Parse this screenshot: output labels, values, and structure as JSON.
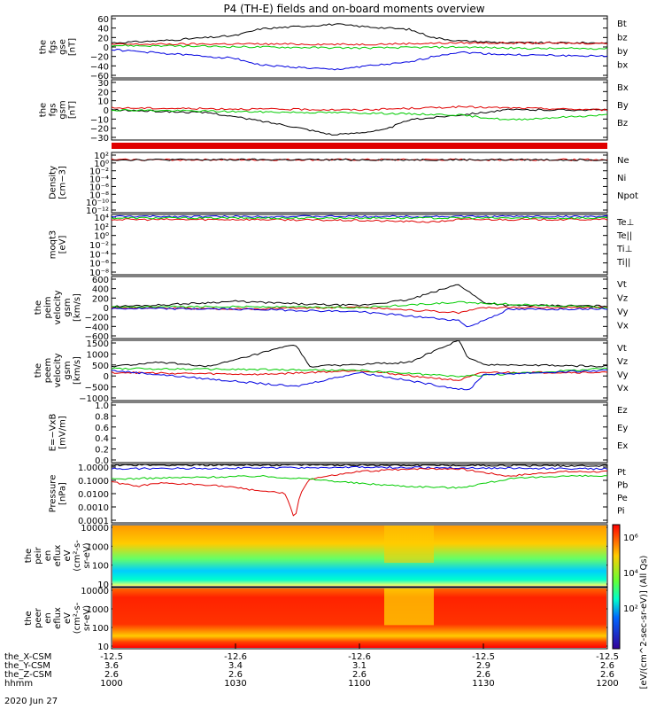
{
  "title": "P4 (TH-E) fields and on-board moments overview",
  "colors": {
    "black": "#000000",
    "red": "#e00000",
    "green": "#00cc00",
    "blue": "#0000e0"
  },
  "chart_data": [
    {
      "type": "line",
      "name": "fgs_gse",
      "ylabel": [
        "the",
        "fgs",
        "gse",
        "[nT]"
      ],
      "yticks": [
        "60",
        "40",
        "20",
        "0",
        "−20",
        "−40",
        "−60"
      ],
      "ylim": [
        -60,
        60
      ],
      "legend": [
        {
          "label": "Bt",
          "color": "black"
        },
        {
          "label": "bz",
          "color": "red"
        },
        {
          "label": "by",
          "color": "green"
        },
        {
          "label": "bx",
          "color": "blue"
        }
      ],
      "series": [
        {
          "name": "Bt",
          "color": "black",
          "x": [
            0,
            0.1,
            0.25,
            0.3,
            0.45,
            0.5,
            0.6,
            0.65,
            0.7,
            0.8,
            1
          ],
          "y": [
            8,
            12,
            22,
            35,
            44,
            40,
            34,
            18,
            12,
            8,
            8
          ]
        },
        {
          "name": "bz",
          "color": "red",
          "x": [
            0,
            0.25,
            0.5,
            0.7,
            1
          ],
          "y": [
            5,
            6,
            5,
            8,
            7
          ]
        },
        {
          "name": "by",
          "color": "green",
          "x": [
            0,
            0.3,
            0.5,
            0.7,
            0.85,
            1
          ],
          "y": [
            3,
            0,
            -2,
            0,
            -3,
            -3
          ]
        },
        {
          "name": "bx",
          "color": "blue",
          "x": [
            0,
            0.1,
            0.25,
            0.3,
            0.45,
            0.5,
            0.6,
            0.65,
            0.7,
            0.8,
            1
          ],
          "y": [
            -5,
            -12,
            -22,
            -35,
            -44,
            -38,
            -30,
            -18,
            -10,
            -15,
            -18
          ]
        }
      ]
    },
    {
      "type": "line",
      "name": "fgs_gsm",
      "ylabel": [
        "the",
        "fgs",
        "gsm",
        "[nT]"
      ],
      "yticks": [
        "30",
        "20",
        "10",
        "0",
        "−10",
        "−20",
        "−30"
      ],
      "ylim": [
        -30,
        30
      ],
      "legend": [
        {
          "label": "Bx",
          "color": "black"
        },
        {
          "label": "By",
          "color": "red"
        },
        {
          "label": "Bz",
          "color": "green"
        }
      ],
      "series": [
        {
          "name": "Bx",
          "color": "black",
          "x": [
            0,
            0.2,
            0.35,
            0.45,
            0.55,
            0.6,
            0.7,
            0.8,
            1
          ],
          "y": [
            0,
            -3,
            -15,
            -25,
            -20,
            -10,
            -5,
            0,
            0
          ]
        },
        {
          "name": "By",
          "color": "red",
          "x": [
            0,
            0.5,
            0.7,
            0.8,
            1
          ],
          "y": [
            2,
            0,
            3,
            2,
            0
          ]
        },
        {
          "name": "Bz",
          "color": "green",
          "x": [
            0,
            0.3,
            0.5,
            0.7,
            0.8,
            1
          ],
          "y": [
            0,
            -2,
            -3,
            -5,
            -10,
            -5
          ]
        }
      ]
    },
    {
      "type": "line",
      "name": "density",
      "ylabel": [
        "Density",
        "[cm−3]"
      ],
      "yticks": [
        "10²",
        "10⁰",
        "10⁻²",
        "10⁻⁴",
        "10⁻⁶",
        "10⁻⁸",
        "10⁻¹⁰",
        "10⁻¹²"
      ],
      "ylim": [
        -12,
        2
      ],
      "log": true,
      "legend": [
        {
          "label": "Ne",
          "color": "red"
        },
        {
          "label": "Ni",
          "color": "black"
        },
        {
          "label": "Npot",
          "color": "blue"
        }
      ],
      "series": [
        {
          "name": "Ne",
          "color": "red",
          "x": [
            0,
            0.5,
            1
          ],
          "y": [
            0.3,
            0.3,
            0.3
          ]
        },
        {
          "name": "Ni",
          "color": "black",
          "x": [
            0,
            0.5,
            1
          ],
          "y": [
            0.3,
            0.3,
            0.3
          ]
        }
      ]
    },
    {
      "type": "line",
      "name": "temperature",
      "ylabel": [
        "moqt3",
        "[eV]"
      ],
      "yticks": [
        "10⁴",
        "10²",
        "10⁰",
        "10⁻²",
        "10⁻⁴",
        "10⁻⁶",
        "10⁻⁸"
      ],
      "ylim": [
        -8,
        4
      ],
      "log": true,
      "legend": [
        {
          "label": "Te⊥",
          "color": "red"
        },
        {
          "label": "Te||",
          "color": "black"
        },
        {
          "label": "Ti⊥",
          "color": "blue"
        },
        {
          "label": "Ti||",
          "color": "green"
        }
      ],
      "series": [
        {
          "name": "Te",
          "color": "red",
          "x": [
            0,
            0.3,
            0.5,
            0.65,
            0.7,
            1
          ],
          "y": [
            3,
            3,
            2.8,
            2.5,
            3,
            3
          ]
        },
        {
          "name": "Ti",
          "color": "blue",
          "x": [
            0,
            1
          ],
          "y": [
            3.6,
            3.6
          ]
        },
        {
          "name": "Ti||",
          "color": "green",
          "x": [
            0,
            1
          ],
          "y": [
            3.3,
            3.3
          ]
        }
      ]
    },
    {
      "type": "line",
      "name": "peim_velocity",
      "ylabel": [
        "the",
        "peim",
        "velocity",
        "gsm",
        "[km/s]"
      ],
      "yticks": [
        "600",
        "400",
        "200",
        "0",
        "−200",
        "−400",
        "−600"
      ],
      "ylim": [
        -600,
        600
      ],
      "legend": [
        {
          "label": "Vt",
          "color": "black"
        },
        {
          "label": "Vz",
          "color": "red"
        },
        {
          "label": "Vy",
          "color": "green"
        },
        {
          "label": "Vx",
          "color": "blue"
        }
      ],
      "series": [
        {
          "name": "Vt",
          "color": "black",
          "x": [
            0,
            0.1,
            0.25,
            0.4,
            0.5,
            0.6,
            0.7,
            0.75,
            0.8,
            1
          ],
          "y": [
            20,
            50,
            120,
            60,
            40,
            150,
            450,
            100,
            40,
            30
          ]
        },
        {
          "name": "Vz",
          "color": "red",
          "x": [
            0,
            0.25,
            0.5,
            0.7,
            0.75,
            1
          ],
          "y": [
            0,
            -30,
            10,
            -100,
            0,
            0
          ]
        },
        {
          "name": "Vy",
          "color": "green",
          "x": [
            0,
            0.25,
            0.5,
            0.7,
            1
          ],
          "y": [
            0,
            20,
            0,
            100,
            0
          ]
        },
        {
          "name": "Vx",
          "color": "blue",
          "x": [
            0,
            0.25,
            0.5,
            0.7,
            0.72,
            0.8,
            1
          ],
          "y": [
            -20,
            -30,
            -80,
            -250,
            -380,
            -40,
            -20
          ]
        }
      ]
    },
    {
      "type": "line",
      "name": "peem_velocity",
      "ylabel": [
        "the",
        "peem",
        "velocity",
        "gsm",
        "[km/s]"
      ],
      "yticks": [
        "1500",
        "1000",
        "500",
        "0",
        "−500",
        "−1000"
      ],
      "ylim": [
        -1500,
        1500
      ],
      "legend": [
        {
          "label": "Vt",
          "color": "black"
        },
        {
          "label": "Vz",
          "color": "red"
        },
        {
          "label": "Vy",
          "color": "green"
        },
        {
          "label": "Vx",
          "color": "blue"
        }
      ],
      "series": [
        {
          "name": "Vt",
          "color": "black",
          "x": [
            0,
            0.1,
            0.2,
            0.37,
            0.4,
            0.5,
            0.6,
            0.7,
            0.72,
            0.75,
            1
          ],
          "y": [
            200,
            400,
            200,
            1300,
            200,
            300,
            400,
            1500,
            600,
            300,
            200
          ]
        },
        {
          "name": "Vz",
          "color": "red",
          "x": [
            0,
            0.3,
            0.5,
            0.7,
            0.75,
            1
          ],
          "y": [
            -100,
            -200,
            0,
            -500,
            -100,
            -100
          ]
        },
        {
          "name": "Vy",
          "color": "green",
          "x": [
            0,
            0.5,
            0.7,
            1
          ],
          "y": [
            100,
            0,
            -300,
            100
          ]
        },
        {
          "name": "Vx",
          "color": "blue",
          "x": [
            0,
            0.37,
            0.5,
            0.72,
            0.75,
            1
          ],
          "y": [
            0,
            -800,
            -100,
            -1000,
            -200,
            0
          ]
        }
      ]
    },
    {
      "type": "line",
      "name": "efield",
      "ylabel": [
        "E=−VxB",
        "[mV/m]"
      ],
      "yticks": [
        "1.0",
        "0.8",
        "0.6",
        "0.4",
        "0.2",
        "0.0"
      ],
      "ylim": [
        0,
        1
      ],
      "legend": [
        {
          "label": "Ez",
          "color": "red"
        },
        {
          "label": "Ey",
          "color": "green"
        },
        {
          "label": "Ex",
          "color": "blue"
        }
      ],
      "series": []
    },
    {
      "type": "line",
      "name": "pressure",
      "ylabel": [
        "Pressure",
        "[nPa]"
      ],
      "yticks": [
        "1.0000",
        "0.1000",
        "0.0100",
        "0.0010",
        "0.0001"
      ],
      "ylim": [
        -4,
        0
      ],
      "log": true,
      "legend": [
        {
          "label": "Pt",
          "color": "black"
        },
        {
          "label": "Pb",
          "color": "red"
        },
        {
          "label": "Pe",
          "color": "green"
        },
        {
          "label": "Pi",
          "color": "blue"
        }
      ],
      "series": [
        {
          "name": "Pt",
          "color": "black",
          "x": [
            0,
            0.5,
            1
          ],
          "y": [
            -0.05,
            -0.05,
            -0.1
          ]
        },
        {
          "name": "Pi",
          "color": "blue",
          "x": [
            0,
            0.5,
            1
          ],
          "y": [
            -0.3,
            -0.2,
            -0.3
          ]
        },
        {
          "name": "Pb",
          "color": "red",
          "x": [
            0,
            0.05,
            0.1,
            0.2,
            0.35,
            0.37,
            0.38,
            0.4,
            0.5,
            0.6,
            0.7,
            0.8,
            0.9,
            1
          ],
          "y": [
            -1.2,
            -1.5,
            -1.3,
            -1.4,
            -2,
            -3.8,
            -2,
            -1,
            -0.5,
            -0.3,
            -0.3,
            -0.8,
            -0.5,
            -0.5
          ]
        },
        {
          "name": "Pe",
          "color": "green",
          "x": [
            0,
            0.3,
            0.4,
            0.5,
            0.6,
            0.7,
            0.8,
            0.9,
            1
          ],
          "y": [
            -1,
            -0.8,
            -1,
            -1.3,
            -1.5,
            -1.6,
            -1,
            -0.8,
            -0.8
          ]
        }
      ]
    },
    {
      "type": "heatmap",
      "name": "peir_eflux",
      "ylabel": [
        "the",
        "peir",
        "en",
        "eflux",
        "eV",
        "(cm²-s-",
        "sr-eV)"
      ],
      "yticks": [
        "10000",
        "1000",
        "100",
        "10"
      ],
      "ylim": [
        1,
        4.3
      ],
      "log": true
    },
    {
      "type": "heatmap",
      "name": "peer_eflux",
      "ylabel": [
        "the",
        "peer",
        "en",
        "eflux",
        "eV",
        "(cm²-s-",
        "sr-eV)"
      ],
      "yticks": [
        "10000",
        "1000",
        "100",
        "10"
      ],
      "ylim": [
        1,
        4.3
      ],
      "log": true
    }
  ],
  "colorbar": {
    "label": "[eV/(cm^2-sec-sr-eV)] (All Qs)",
    "ticks": [
      "10⁶",
      "10⁴",
      "10²"
    ]
  },
  "xaxis": {
    "ticks": [
      {
        "cols": [
          "-12.5",
          "3.6",
          "2.6",
          "1000"
        ]
      },
      {
        "cols": [
          "-12.6",
          "3.4",
          "2.6",
          "1030"
        ]
      },
      {
        "cols": [
          "-12.6",
          "3.1",
          "2.6",
          "1100"
        ]
      },
      {
        "cols": [
          "-12.5",
          "2.9",
          "2.6",
          "1130"
        ]
      },
      {
        "cols": [
          "-12.5",
          "2.6",
          "2.6",
          "1200"
        ]
      }
    ],
    "row_labels": [
      "the_X-CSM",
      "the_Y-CSM",
      "the_Z-CSM",
      "hhmm"
    ],
    "date": "2020 Jun 27"
  }
}
